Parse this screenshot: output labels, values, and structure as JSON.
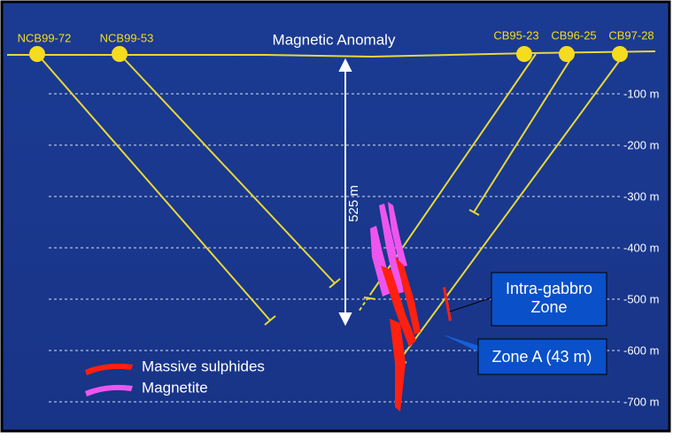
{
  "section": {
    "title": "Magnetic Anomaly",
    "holes": [
      "NCB99-72",
      "NCB99-53",
      "CB95-23",
      "CB96-25",
      "CB97-28"
    ],
    "depths": [
      "-100 m",
      "-200 m",
      "-300 m",
      "-400 m",
      "-500 m",
      "-600 m",
      "-700 m"
    ],
    "span_label": "525 m",
    "zones": [
      "Intra-gabbro\nZone",
      "Zone A (43 m)"
    ],
    "legend": [
      "Massive sulphides",
      "Magnetite"
    ]
  }
}
